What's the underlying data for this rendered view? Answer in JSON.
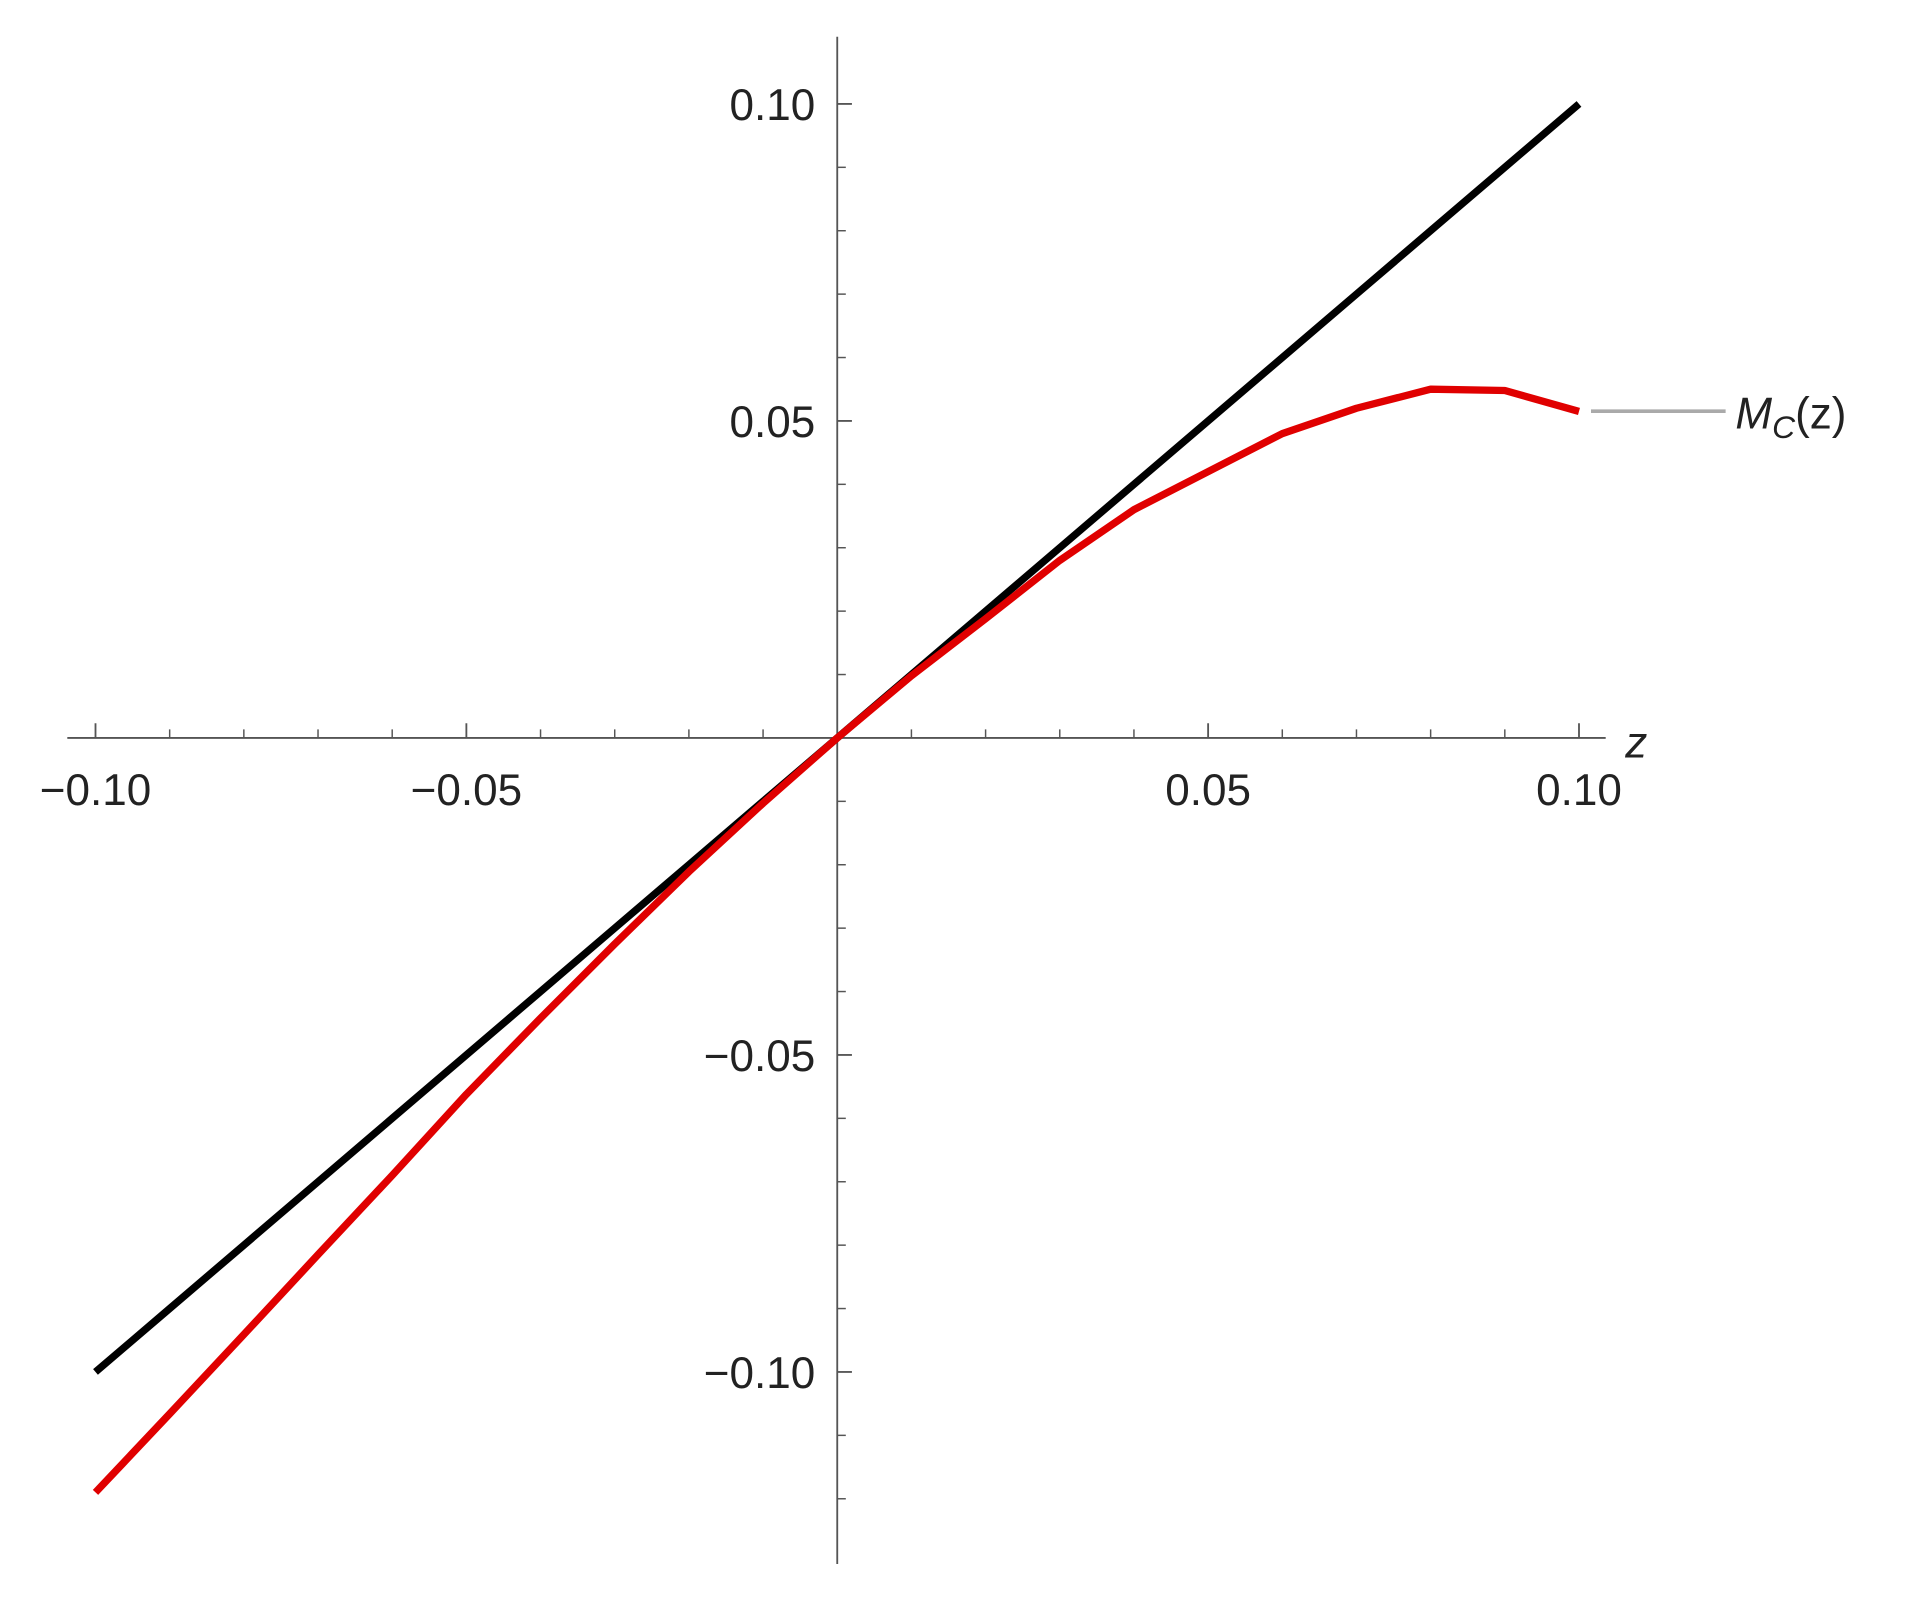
{
  "chart_data": {
    "type": "line",
    "x_label": "z",
    "x": [
      -0.1,
      -0.09,
      -0.08,
      -0.07,
      -0.06,
      -0.05,
      -0.04,
      -0.03,
      -0.02,
      -0.01,
      0,
      0.01,
      0.02,
      0.03,
      0.04,
      0.05,
      0.06,
      0.07,
      0.08,
      0.09,
      0.1
    ],
    "series": [
      {
        "color": "#000000",
        "values": [
          -0.1,
          -0.09,
          -0.08,
          -0.07,
          -0.06,
          -0.05,
          -0.04,
          -0.03,
          -0.02,
          -0.01,
          0,
          0.01,
          0.02,
          0.03,
          0.04,
          0.05,
          0.06,
          0.07,
          0.08,
          0.09,
          0.1
        ]
      },
      {
        "color": "#e00000",
        "values": [
          -0.119,
          -0.1066,
          -0.0941,
          -0.0815,
          -0.069,
          -0.0562,
          -0.0442,
          -0.0325,
          -0.0211,
          -0.0103,
          0,
          0.0098,
          0.0188,
          0.028,
          0.036,
          0.042,
          0.048,
          0.052,
          0.055,
          0.0548,
          0.0515
        ]
      }
    ],
    "annotation": {
      "main": "M",
      "sub": "C",
      "arg": "(z)"
    },
    "xlim": [
      -0.1038,
      0.1036
    ],
    "ylim": [
      -0.1303,
      0.1106
    ],
    "xticks": [
      {
        "value": -0.1,
        "label": "−0.10"
      },
      {
        "value": -0.05,
        "label": "−0.05"
      },
      {
        "value": 0.05,
        "label": "0.05"
      },
      {
        "value": 0.1,
        "label": "0.10"
      }
    ],
    "yticks": [
      {
        "value": -0.1,
        "label": "−0.10"
      },
      {
        "value": -0.05,
        "label": "−0.05"
      },
      {
        "value": 0.05,
        "label": "0.05"
      },
      {
        "value": 0.1,
        "label": "0.10"
      }
    ],
    "xminorticks": [
      -0.09,
      -0.08,
      -0.07,
      -0.06,
      -0.04,
      -0.03,
      -0.02,
      -0.01,
      0.01,
      0.02,
      0.03,
      0.04,
      0.06,
      0.07,
      0.08,
      0.09
    ],
    "yminorticks": [
      -0.12,
      -0.11,
      -0.09,
      -0.08,
      -0.07,
      -0.06,
      -0.04,
      -0.03,
      -0.02,
      -0.01,
      0.01,
      0.02,
      0.03,
      0.04,
      0.06,
      0.07,
      0.08,
      0.09
    ]
  }
}
